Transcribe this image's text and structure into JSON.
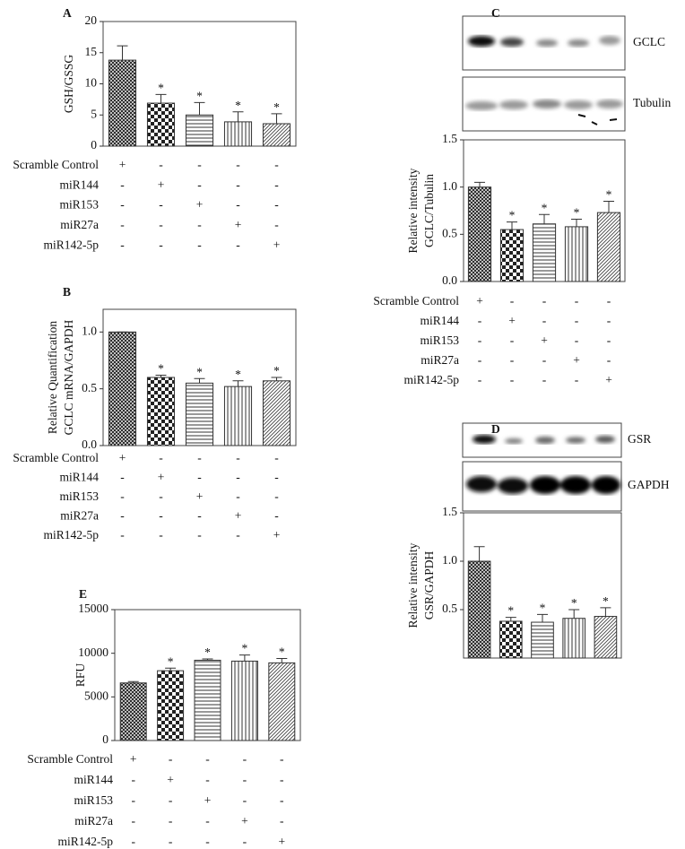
{
  "chart_data": [
    {
      "type": "bar",
      "panel": "A",
      "ylabel": [
        "GSH/GSSG"
      ],
      "values": [
        13.8,
        6.9,
        5.0,
        3.9,
        3.6
      ],
      "errors": [
        2.3,
        1.4,
        2.0,
        1.6,
        1.6
      ],
      "significance": [
        null,
        "*",
        "*",
        "*",
        "*"
      ],
      "ylim": [
        0,
        20
      ],
      "yticks": [
        0,
        5,
        10,
        15,
        20
      ],
      "treatments": {
        "rows": [
          "Scramble Control",
          "miR144",
          "miR153",
          "miR27a",
          "miR142-5p"
        ],
        "signs": [
          [
            "+",
            "-",
            "-",
            "-",
            "-"
          ],
          [
            "-",
            "+",
            "-",
            "-",
            "-"
          ],
          [
            "-",
            "-",
            "+",
            "-",
            "-"
          ],
          [
            "-",
            "-",
            "-",
            "+",
            "-"
          ],
          [
            "-",
            "-",
            "-",
            "-",
            "+"
          ]
        ]
      }
    },
    {
      "type": "bar",
      "panel": "B",
      "ylabel": [
        "Relative Quantification",
        "GCLC mRNA/GAPDH"
      ],
      "values": [
        1.0,
        0.6,
        0.55,
        0.52,
        0.57
      ],
      "errors": [
        0,
        0.02,
        0.04,
        0.05,
        0.03
      ],
      "significance": [
        null,
        "*",
        "*",
        "*",
        "*"
      ],
      "ylim": [
        0,
        1.2
      ],
      "yticks": [
        {
          "value": 0,
          "label": "0.0"
        },
        {
          "value": 0.5,
          "label": "0.5"
        },
        {
          "value": 1,
          "label": "1.0"
        }
      ],
      "treatments": {
        "rows": [
          "Scramble Control",
          "miR144",
          "miR153",
          "miR27a",
          "miR142-5p"
        ],
        "signs": [
          [
            "+",
            "-",
            "-",
            "-",
            "-"
          ],
          [
            "-",
            "+",
            "-",
            "-",
            "-"
          ],
          [
            "-",
            "-",
            "+",
            "-",
            "-"
          ],
          [
            "-",
            "-",
            "-",
            "+",
            "-"
          ],
          [
            "-",
            "-",
            "-",
            "-",
            "+"
          ]
        ]
      }
    },
    {
      "type": "bar",
      "panel": "C",
      "blots": [
        "GCLC",
        "Tubulin"
      ],
      "ylabel": [
        "Relative intensity",
        "GCLC/Tubulin"
      ],
      "values": [
        1.0,
        0.55,
        0.61,
        0.58,
        0.73
      ],
      "errors": [
        0.05,
        0.08,
        0.1,
        0.08,
        0.12
      ],
      "significance": [
        null,
        "*",
        "*",
        "*",
        "*"
      ],
      "ylim": [
        0,
        1.5
      ],
      "yticks": [
        {
          "value": 0,
          "label": "0.0"
        },
        {
          "value": 0.5,
          "label": "0.5"
        },
        {
          "value": 1,
          "label": "1.0"
        },
        {
          "value": 1.5,
          "label": "1.5"
        }
      ],
      "treatments": {
        "rows": [
          "Scramble Control",
          "miR144",
          "miR153",
          "miR27a",
          "miR142-5p"
        ],
        "signs": [
          [
            "+",
            "-",
            "-",
            "-",
            "-"
          ],
          [
            "-",
            "+",
            "-",
            "-",
            "-"
          ],
          [
            "-",
            "-",
            "+",
            "-",
            "-"
          ],
          [
            "-",
            "-",
            "-",
            "+",
            "-"
          ],
          [
            "-",
            "-",
            "-",
            "-",
            "+"
          ]
        ]
      }
    },
    {
      "type": "bar",
      "panel": "D",
      "blots": [
        "GSR",
        "GAPDH"
      ],
      "ylabel": [
        "Relative intensity",
        "GSR/GAPDH"
      ],
      "values": [
        1.0,
        0.38,
        0.37,
        0.41,
        0.43
      ],
      "errors": [
        0.15,
        0.04,
        0.08,
        0.09,
        0.09
      ],
      "significance": [
        null,
        "*",
        "*",
        "*",
        "*"
      ],
      "ylim": [
        0,
        1.5
      ],
      "yticks": [
        {
          "value": 0.5,
          "label": "0.5"
        },
        {
          "value": 1,
          "label": "1.0"
        },
        {
          "value": 1.5,
          "label": "1.5"
        }
      ]
    },
    {
      "type": "bar",
      "panel": "E",
      "ylabel": [
        "RFU"
      ],
      "values": [
        6600,
        8000,
        9200,
        9100,
        8900
      ],
      "errors": [
        150,
        300,
        150,
        700,
        500
      ],
      "significance": [
        null,
        "*",
        "*",
        "*",
        "*"
      ],
      "ylim": [
        0,
        15000
      ],
      "yticks": [
        0,
        5000,
        10000,
        15000
      ],
      "treatments": {
        "rows": [
          "Scramble Control",
          "miR144",
          "miR153",
          "miR27a",
          "miR142-5p"
        ],
        "signs": [
          [
            "+",
            "-",
            "-",
            "-",
            "-"
          ],
          [
            "-",
            "+",
            "-",
            "-",
            "-"
          ],
          [
            "-",
            "-",
            "+",
            "-",
            "-"
          ],
          [
            "-",
            "-",
            "-",
            "+",
            "-"
          ],
          [
            "-",
            "-",
            "-",
            "-",
            "+"
          ]
        ]
      }
    }
  ]
}
